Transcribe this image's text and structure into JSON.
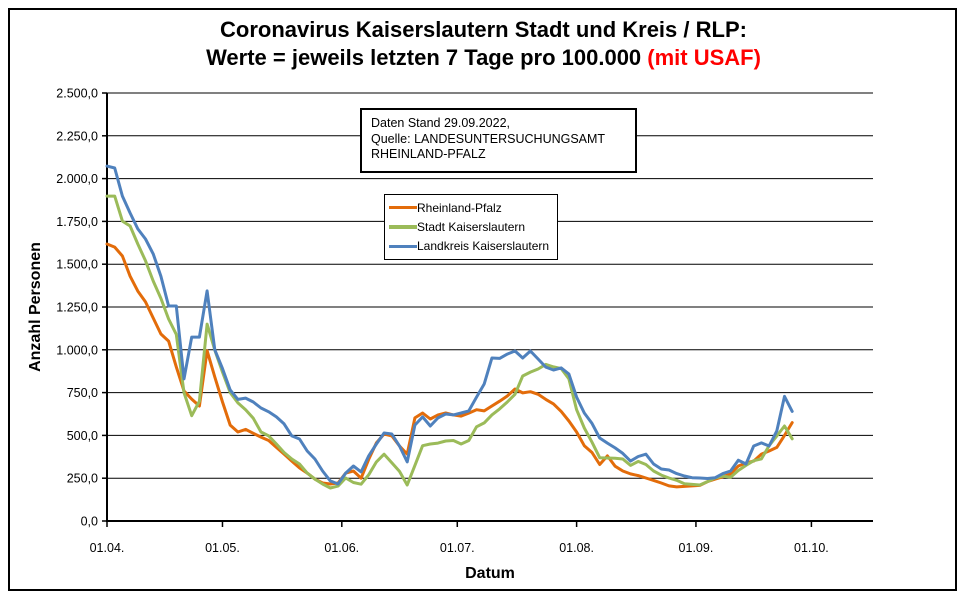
{
  "title": {
    "line1": "Coronavirus Kaiserslautern Stadt und Kreis / RLP:",
    "line2": "Werte = jeweils letzten 7 Tage pro 100.000 ",
    "line2_highlight": "(mit USAF)",
    "highlight_color": "#FF0000"
  },
  "annotation": {
    "lines": [
      "Daten Stand 29.09.2022,",
      "Quelle: LANDESUNTERSUCHUNGSAMT",
      "RHEINLAND-PFALZ"
    ]
  },
  "legend": {
    "items": [
      {
        "label": "Rheinland-Pfalz",
        "color": "#E36C0A"
      },
      {
        "label": "Stadt Kaiserslautern",
        "color": "#9BBB59"
      },
      {
        "label": "Landkreis Kaiserslautern",
        "color": "#4F81BD"
      }
    ]
  },
  "axes": {
    "y_title": "Anzahl Personen",
    "x_title": "Datum"
  },
  "chart_data": {
    "type": "line",
    "title": "Coronavirus Kaiserslautern Stadt und Kreis / RLP: Werte = jeweils letzten 7 Tage pro 100.000 (mit USAF)",
    "xlabel": "Datum",
    "ylabel": "Anzahl Personen",
    "ylim": [
      0,
      2500
    ],
    "ytick_step": 250,
    "yticks": [
      {
        "value": 0,
        "label": "0,0"
      },
      {
        "value": 250,
        "label": "250,0"
      },
      {
        "value": 500,
        "label": "500,0"
      },
      {
        "value": 750,
        "label": "750,0"
      },
      {
        "value": 1000,
        "label": "1.000,0"
      },
      {
        "value": 1250,
        "label": "1.250,0"
      },
      {
        "value": 1500,
        "label": "1.500,0"
      },
      {
        "value": 1750,
        "label": "1.750,0"
      },
      {
        "value": 2000,
        "label": "2.000,0"
      },
      {
        "value": 2250,
        "label": "2.250,0"
      },
      {
        "value": 2500,
        "label": "2.500,0"
      }
    ],
    "xticks": [
      {
        "day": 0,
        "label": "01.04."
      },
      {
        "day": 30,
        "label": "01.05."
      },
      {
        "day": 61,
        "label": "01.06."
      },
      {
        "day": 91,
        "label": "01.07."
      },
      {
        "day": 122,
        "label": "01.08."
      },
      {
        "day": 153,
        "label": "01.09."
      },
      {
        "day": 183,
        "label": "01.10."
      }
    ],
    "x_start_date": "01.04.2022",
    "x_end_date_of_data": "29.09.2022",
    "x_step_days": 2,
    "x_domain_days": [
      0,
      199
    ],
    "grid": "horizontal",
    "legend_position": "inside-top-center",
    "series": [
      {
        "name": "Rheinland-Pfalz",
        "color": "#E36C0A",
        "values": [
          1618,
          1600,
          1548,
          1430,
          1343,
          1280,
          1186,
          1092,
          1051,
          900,
          760,
          712,
          672,
          995,
          841,
          695,
          560,
          520,
          535,
          512,
          490,
          470,
          430,
          391,
          350,
          310,
          280,
          245,
          222,
          216,
          222,
          280,
          292,
          250,
          360,
          456,
          508,
          497,
          438,
          391,
          602,
          631,
          596,
          620,
          631,
          620,
          613,
          630,
          650,
          643,
          672,
          700,
          730,
          771,
          748,
          755,
          740,
          710,
          684,
          640,
          584,
          520,
          440,
          400,
          330,
          380,
          320,
          292,
          275,
          265,
          251,
          237,
          222,
          205,
          199,
          202,
          205,
          208,
          230,
          245,
          258,
          275,
          321,
          339,
          350,
          391,
          409,
          430,
          500,
          575
        ]
      },
      {
        "name": "Stadt Kaiserslautern",
        "color": "#9BBB59",
        "values": [
          1898,
          1898,
          1752,
          1723,
          1618,
          1520,
          1402,
          1300,
          1180,
          1090,
          750,
          615,
          700,
          1150,
          998,
          870,
          750,
          690,
          650,
          600,
          520,
          497,
          450,
          400,
          362,
          333,
          280,
          245,
          216,
          193,
          204,
          251,
          225,
          215,
          270,
          345,
          390,
          340,
          290,
          210,
          325,
          440,
          450,
          455,
          467,
          470,
          450,
          470,
          550,
          573,
          620,
          655,
          695,
          740,
          847,
          870,
          888,
          915,
          900,
          890,
          830,
          650,
          543,
          460,
          370,
          368,
          366,
          362,
          325,
          348,
          330,
          292,
          268,
          251,
          238,
          218,
          214,
          210,
          230,
          252,
          262,
          255,
          295,
          325,
          352,
          363,
          440,
          497,
          555,
          480
        ]
      },
      {
        "name": "Landkreis Kaiserslautern",
        "color": "#4F81BD",
        "values": [
          2073,
          2062,
          1898,
          1799,
          1706,
          1647,
          1560,
          1430,
          1256,
          1256,
          830,
          1074,
          1074,
          1344,
          1000,
          890,
          765,
          710,
          718,
          695,
          660,
          638,
          608,
          567,
          497,
          479,
          409,
          362,
          292,
          234,
          216,
          280,
          321,
          287,
          380,
          450,
          514,
          508,
          438,
          345,
          560,
          608,
          555,
          602,
          625,
          620,
          631,
          643,
          723,
          800,
          952,
          950,
          975,
          993,
          952,
          993,
          946,
          899,
          882,
          894,
          858,
          724,
          631,
          570,
          485,
          455,
          427,
          395,
          350,
          377,
          390,
          333,
          304,
          298,
          277,
          263,
          253,
          251,
          248,
          253,
          277,
          292,
          355,
          333,
          438,
          456,
          438,
          526,
          728,
          640
        ]
      }
    ]
  }
}
